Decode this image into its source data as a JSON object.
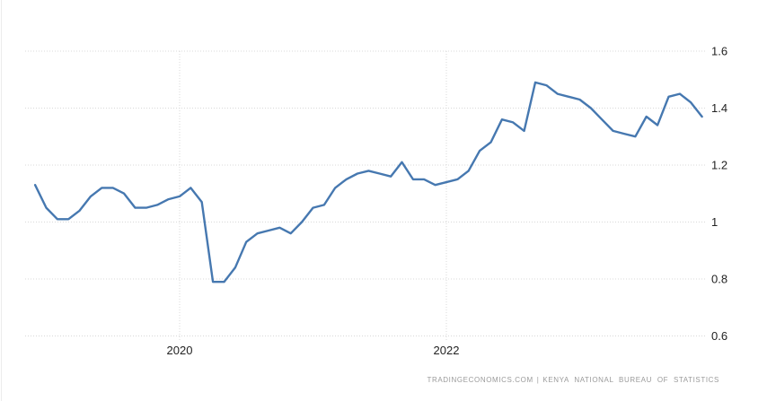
{
  "attribution": {
    "source": "TRADINGECONOMICS.COM",
    "separator": "|",
    "provider": "KENYA NATIONAL BUREAU OF STATISTICS"
  },
  "chart_data": {
    "type": "line",
    "title": "",
    "xlabel": "",
    "ylabel": "",
    "ylim": [
      0.6,
      1.6
    ],
    "grid": "dotted",
    "legend_position": "none",
    "y_ticks": [
      {
        "label": "1.6",
        "value": 1.6
      },
      {
        "label": "1.4",
        "value": 1.4
      },
      {
        "label": "1.2",
        "value": 1.2
      },
      {
        "label": "1",
        "value": 1.0
      },
      {
        "label": "0.8",
        "value": 0.8
      },
      {
        "label": "0.6",
        "value": 0.6
      }
    ],
    "x_ticks": [
      {
        "label": "2020",
        "index": 13
      },
      {
        "label": "2022",
        "index": 37
      }
    ],
    "x": [
      "2018-12",
      "2019-01",
      "2019-02",
      "2019-03",
      "2019-04",
      "2019-05",
      "2019-06",
      "2019-07",
      "2019-08",
      "2019-09",
      "2019-10",
      "2019-11",
      "2019-12",
      "2020-01",
      "2020-02",
      "2020-03",
      "2020-04",
      "2020-05",
      "2020-06",
      "2020-07",
      "2020-08",
      "2020-09",
      "2020-10",
      "2020-11",
      "2020-12",
      "2021-01",
      "2021-02",
      "2021-03",
      "2021-04",
      "2021-05",
      "2021-06",
      "2021-07",
      "2021-08",
      "2021-09",
      "2021-10",
      "2021-11",
      "2021-12",
      "2022-01",
      "2022-02",
      "2022-03",
      "2022-04",
      "2022-05",
      "2022-06",
      "2022-07",
      "2022-08",
      "2022-09",
      "2022-10",
      "2022-11",
      "2022-12",
      "2023-01",
      "2023-02",
      "2023-03",
      "2023-04",
      "2023-05",
      "2023-06",
      "2023-07",
      "2023-08",
      "2023-09",
      "2023-10",
      "2023-11",
      "2023-12"
    ],
    "values": [
      1.13,
      1.05,
      1.01,
      1.01,
      1.04,
      1.09,
      1.12,
      1.12,
      1.1,
      1.05,
      1.05,
      1.06,
      1.08,
      1.09,
      1.12,
      1.07,
      0.79,
      0.79,
      0.84,
      0.93,
      0.96,
      0.97,
      0.98,
      0.96,
      1.0,
      1.05,
      1.06,
      1.12,
      1.15,
      1.17,
      1.18,
      1.17,
      1.16,
      1.21,
      1.15,
      1.15,
      1.13,
      1.14,
      1.15,
      1.18,
      1.25,
      1.28,
      1.36,
      1.35,
      1.32,
      1.49,
      1.48,
      1.45,
      1.44,
      1.43,
      1.4,
      1.36,
      1.32,
      1.31,
      1.3,
      1.37,
      1.34,
      1.44,
      1.45,
      1.42,
      1.37
    ],
    "style": {
      "line_color": "#4678b0",
      "grid_color": "#d8d8d8",
      "tick_label_color": "#222222",
      "attribution_color": "#9a9a9a",
      "background_color": "#ffffff"
    }
  }
}
